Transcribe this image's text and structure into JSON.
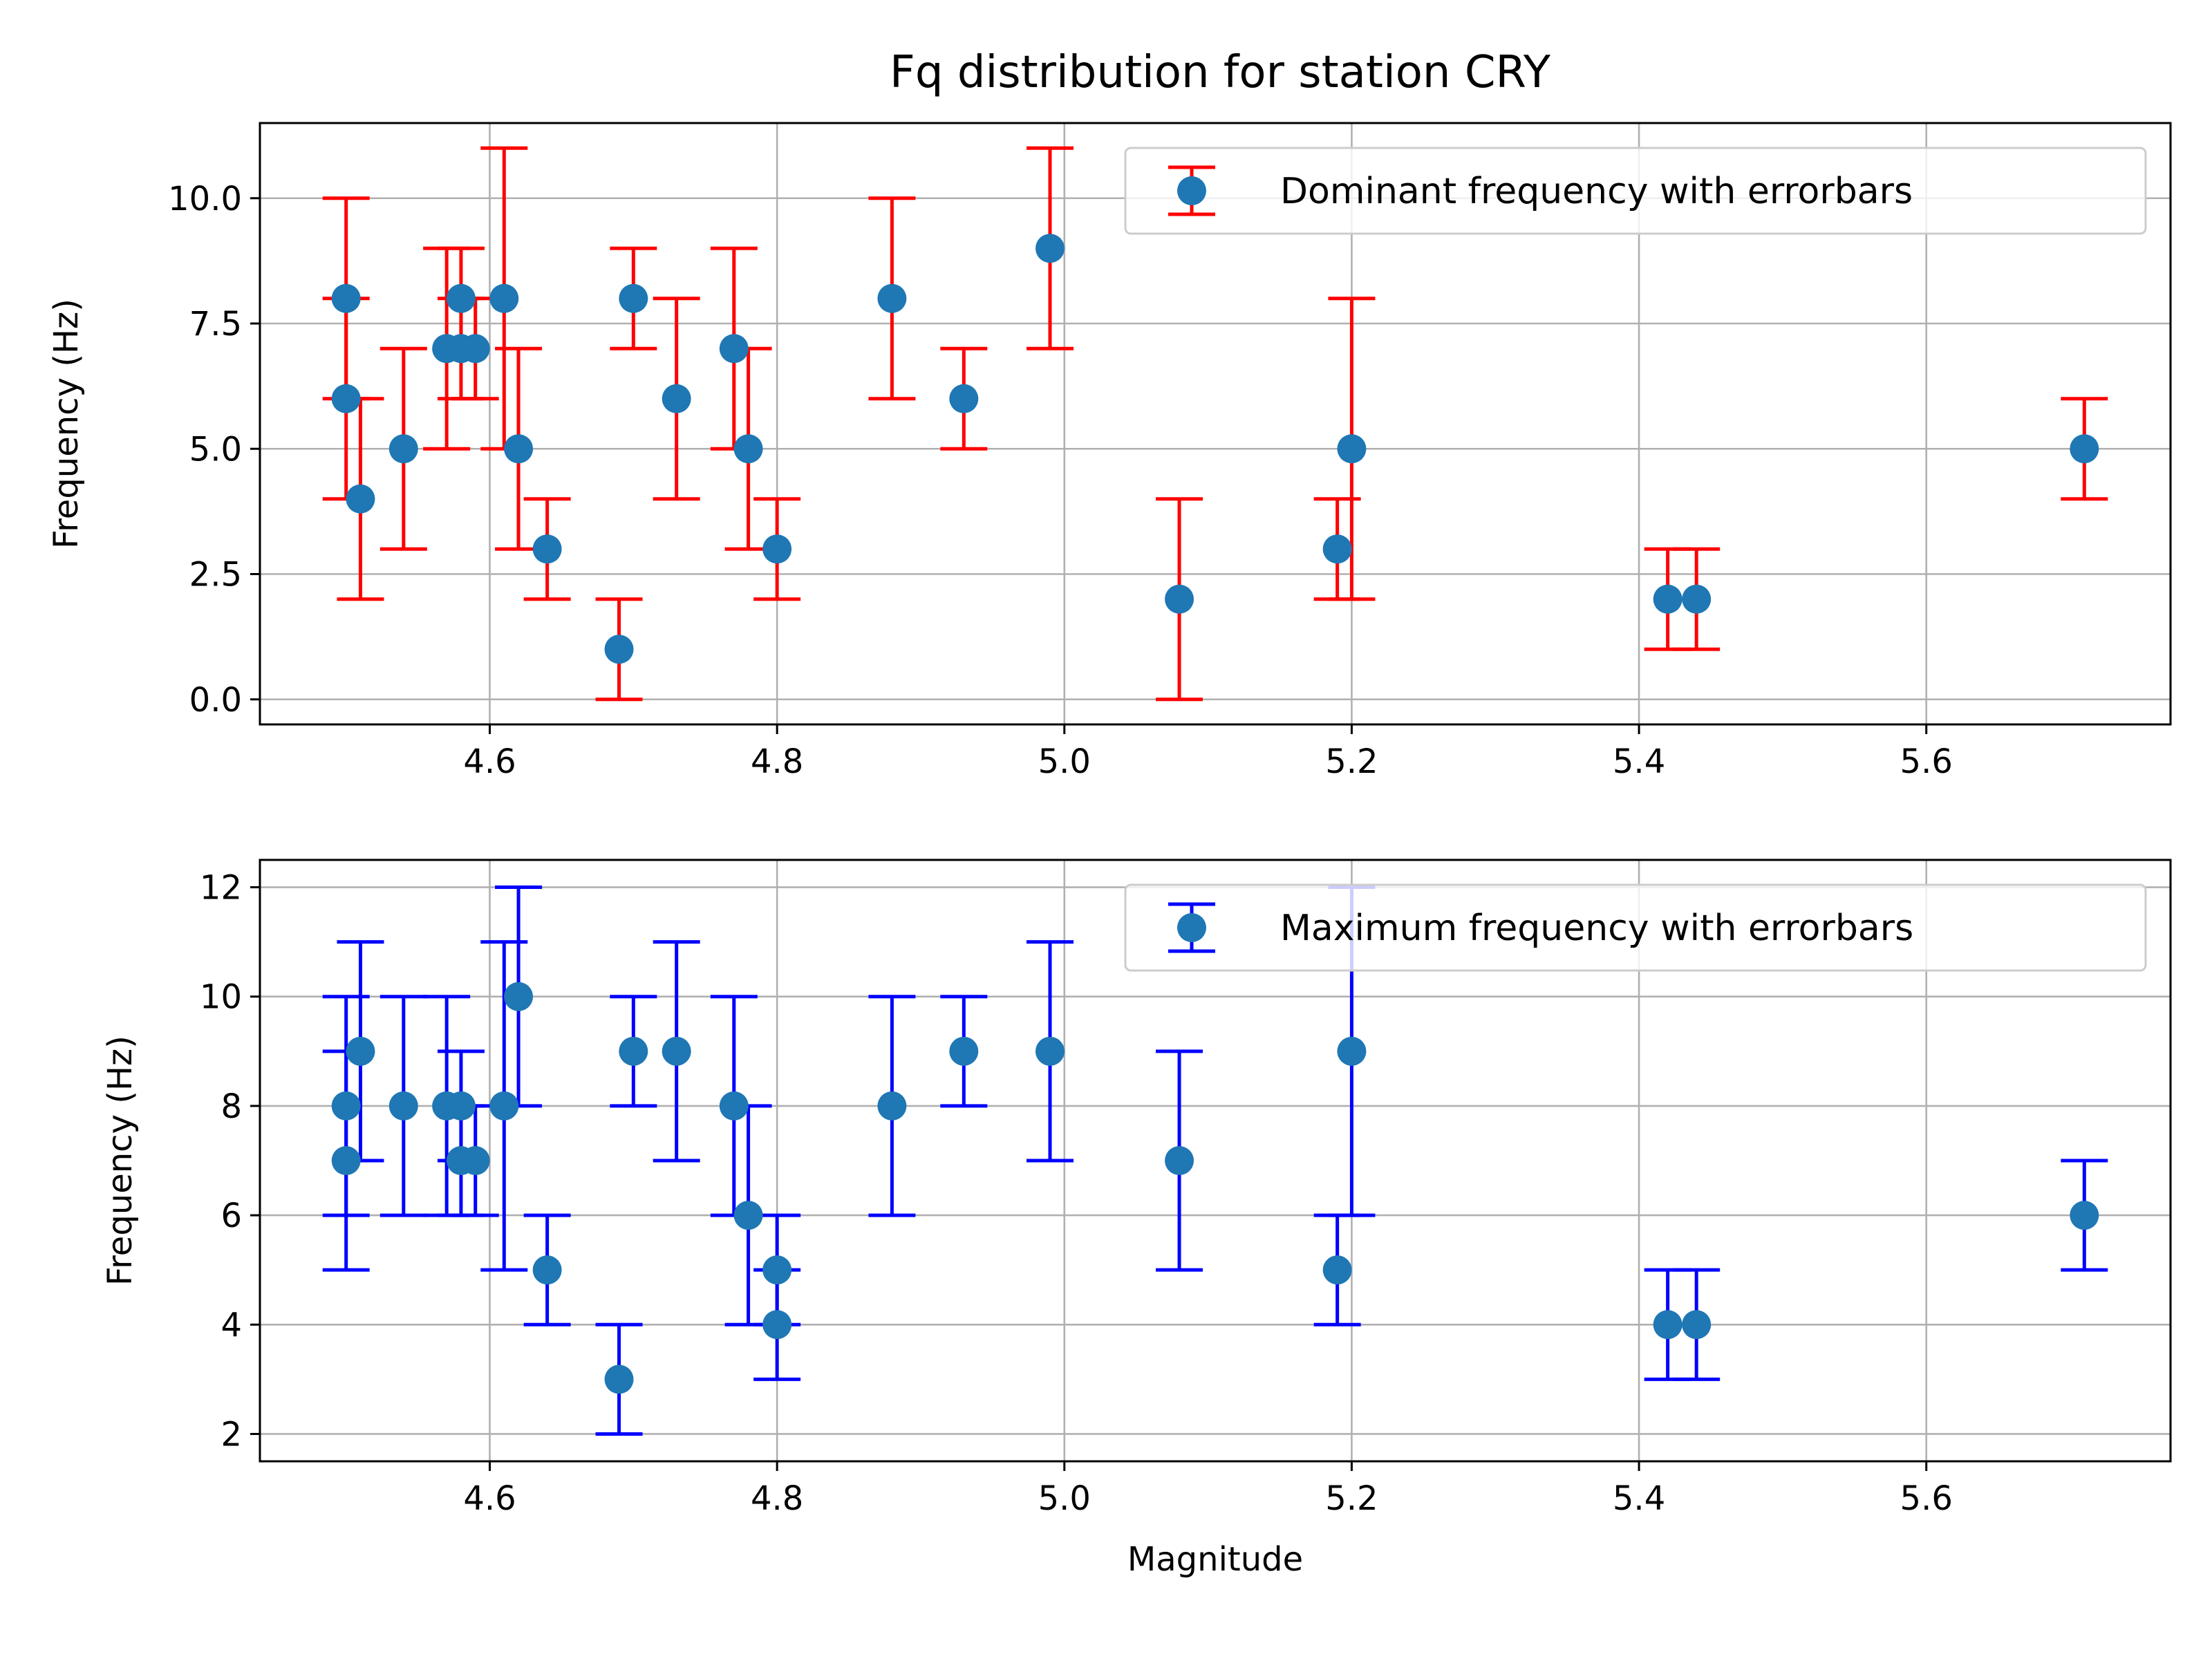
{
  "figure": {
    "title": "Fq distribution for station CRY"
  },
  "chart_data": [
    {
      "type": "scatter",
      "title": "Fq distribution for station CRY",
      "xlabel": "",
      "ylabel": "Frequency (Hz)",
      "xlim": [
        4.44,
        5.77
      ],
      "ylim": [
        -0.5,
        11.5
      ],
      "xticks": [
        4.6,
        4.8,
        5.0,
        5.2,
        5.4,
        5.6
      ],
      "xtick_labels": [
        "4.6",
        "4.8",
        "5.0",
        "5.2",
        "5.4",
        "5.6"
      ],
      "yticks": [
        0,
        2.5,
        5,
        7.5,
        10
      ],
      "ytick_labels": [
        "0.0",
        "2.5",
        "5.0",
        "7.5",
        "10.0"
      ],
      "grid": true,
      "legend": "top-right",
      "series": [
        {
          "name": "Dominant frequency with errorbars",
          "marker_color": "#1f77b4",
          "errorbar_color": "#ff0000",
          "points": [
            {
              "x": 4.5,
              "y": 8,
              "lo": 6,
              "hi": 10
            },
            {
              "x": 4.5,
              "y": 6,
              "lo": 4,
              "hi": 8
            },
            {
              "x": 4.51,
              "y": 4,
              "lo": 2,
              "hi": 6
            },
            {
              "x": 4.54,
              "y": 5,
              "lo": 3,
              "hi": 7
            },
            {
              "x": 4.57,
              "y": 7,
              "lo": 5,
              "hi": 9
            },
            {
              "x": 4.58,
              "y": 8,
              "lo": 7,
              "hi": 9
            },
            {
              "x": 4.58,
              "y": 7,
              "lo": 6,
              "hi": 8
            },
            {
              "x": 4.59,
              "y": 7,
              "lo": 6,
              "hi": 8
            },
            {
              "x": 4.61,
              "y": 8,
              "lo": 5,
              "hi": 11
            },
            {
              "x": 4.62,
              "y": 5,
              "lo": 3,
              "hi": 7
            },
            {
              "x": 4.64,
              "y": 3,
              "lo": 2,
              "hi": 4
            },
            {
              "x": 4.69,
              "y": 1,
              "lo": 0,
              "hi": 2
            },
            {
              "x": 4.7,
              "y": 8,
              "lo": 7,
              "hi": 9
            },
            {
              "x": 4.73,
              "y": 6,
              "lo": 4,
              "hi": 8
            },
            {
              "x": 4.77,
              "y": 7,
              "lo": 5,
              "hi": 9
            },
            {
              "x": 4.78,
              "y": 5,
              "lo": 3,
              "hi": 7
            },
            {
              "x": 4.8,
              "y": 3,
              "lo": 2,
              "hi": 4
            },
            {
              "x": 4.88,
              "y": 8,
              "lo": 6,
              "hi": 10
            },
            {
              "x": 4.93,
              "y": 6,
              "lo": 5,
              "hi": 7
            },
            {
              "x": 4.99,
              "y": 9,
              "lo": 7,
              "hi": 11
            },
            {
              "x": 5.08,
              "y": 2,
              "lo": 0,
              "hi": 4
            },
            {
              "x": 5.19,
              "y": 3,
              "lo": 2,
              "hi": 4
            },
            {
              "x": 5.2,
              "y": 5,
              "lo": 2,
              "hi": 8
            },
            {
              "x": 5.42,
              "y": 2,
              "lo": 1,
              "hi": 3
            },
            {
              "x": 5.44,
              "y": 2,
              "lo": 1,
              "hi": 3
            },
            {
              "x": 5.71,
              "y": 5,
              "lo": 4,
              "hi": 6
            }
          ]
        }
      ]
    },
    {
      "type": "scatter",
      "title": "",
      "xlabel": "Magnitude",
      "ylabel": "Frequency (Hz)",
      "xlim": [
        4.44,
        5.77
      ],
      "ylim": [
        1.5,
        12.5
      ],
      "xticks": [
        4.6,
        4.8,
        5.0,
        5.2,
        5.4,
        5.6
      ],
      "xtick_labels": [
        "4.6",
        "4.8",
        "5.0",
        "5.2",
        "5.4",
        "5.6"
      ],
      "yticks": [
        2,
        4,
        6,
        8,
        10,
        12
      ],
      "ytick_labels": [
        "2",
        "4",
        "6",
        "8",
        "10",
        "12"
      ],
      "grid": true,
      "legend": "top-right",
      "series": [
        {
          "name": "Maximum frequency with errorbars",
          "marker_color": "#1f77b4",
          "errorbar_color": "#0000ff",
          "points": [
            {
              "x": 4.5,
              "y": 8,
              "lo": 6,
              "hi": 10
            },
            {
              "x": 4.5,
              "y": 7,
              "lo": 5,
              "hi": 9
            },
            {
              "x": 4.51,
              "y": 9,
              "lo": 7,
              "hi": 11
            },
            {
              "x": 4.54,
              "y": 8,
              "lo": 6,
              "hi": 10
            },
            {
              "x": 4.57,
              "y": 8,
              "lo": 6,
              "hi": 10
            },
            {
              "x": 4.58,
              "y": 8,
              "lo": 7,
              "hi": 9
            },
            {
              "x": 4.58,
              "y": 7,
              "lo": 6,
              "hi": 8
            },
            {
              "x": 4.59,
              "y": 7,
              "lo": 6,
              "hi": 8
            },
            {
              "x": 4.61,
              "y": 8,
              "lo": 5,
              "hi": 11
            },
            {
              "x": 4.62,
              "y": 10,
              "lo": 8,
              "hi": 12
            },
            {
              "x": 4.64,
              "y": 5,
              "lo": 4,
              "hi": 6
            },
            {
              "x": 4.69,
              "y": 3,
              "lo": 2,
              "hi": 4
            },
            {
              "x": 4.7,
              "y": 9,
              "lo": 8,
              "hi": 10
            },
            {
              "x": 4.73,
              "y": 9,
              "lo": 7,
              "hi": 11
            },
            {
              "x": 4.77,
              "y": 8,
              "lo": 6,
              "hi": 10
            },
            {
              "x": 4.78,
              "y": 6,
              "lo": 4,
              "hi": 8
            },
            {
              "x": 4.8,
              "y": 5,
              "lo": 4,
              "hi": 6
            },
            {
              "x": 4.8,
              "y": 4,
              "lo": 3,
              "hi": 5
            },
            {
              "x": 4.88,
              "y": 8,
              "lo": 6,
              "hi": 10
            },
            {
              "x": 4.93,
              "y": 9,
              "lo": 8,
              "hi": 10
            },
            {
              "x": 4.99,
              "y": 9,
              "lo": 7,
              "hi": 11
            },
            {
              "x": 5.08,
              "y": 7,
              "lo": 5,
              "hi": 9
            },
            {
              "x": 5.19,
              "y": 5,
              "lo": 4,
              "hi": 6
            },
            {
              "x": 5.2,
              "y": 9,
              "lo": 6,
              "hi": 12
            },
            {
              "x": 5.42,
              "y": 4,
              "lo": 3,
              "hi": 5
            },
            {
              "x": 5.44,
              "y": 4,
              "lo": 3,
              "hi": 5
            },
            {
              "x": 5.71,
              "y": 6,
              "lo": 5,
              "hi": 7
            }
          ]
        }
      ]
    }
  ]
}
